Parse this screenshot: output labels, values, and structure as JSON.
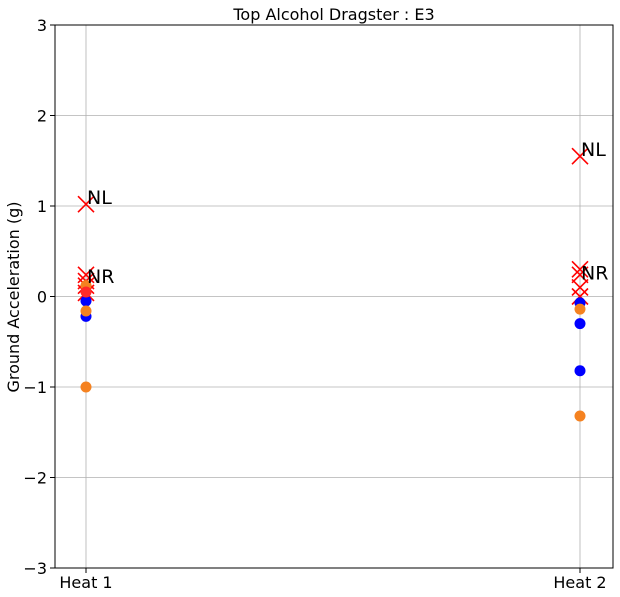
{
  "chart_data": {
    "type": "scatter",
    "title": "Top Alcohol Dragster : E3",
    "xlabel": "",
    "ylabel": "Ground Acceleration (g)",
    "categories": [
      "Heat 1",
      "Heat 2"
    ],
    "ylim": [
      -3,
      3
    ],
    "yticks": [
      -3,
      -2,
      -1,
      0,
      1,
      2,
      3
    ],
    "ytick_labels": [
      "−3",
      "−2",
      "−1",
      "0",
      "1",
      "2",
      "3"
    ],
    "grid": true,
    "series": [
      {
        "marker": "x",
        "color": "#ff0000",
        "points": [
          {
            "x": "Heat 1",
            "y": 1.02
          },
          {
            "x": "Heat 1",
            "y": 0.24
          },
          {
            "x": "Heat 1",
            "y": 0.17
          },
          {
            "x": "Heat 1",
            "y": 0.12
          },
          {
            "x": "Heat 1",
            "y": 0.04
          },
          {
            "x": "Heat 2",
            "y": 1.55
          },
          {
            "x": "Heat 2",
            "y": 0.3
          },
          {
            "x": "Heat 2",
            "y": 0.24
          },
          {
            "x": "Heat 2",
            "y": 0.1
          },
          {
            "x": "Heat 2",
            "y": 0.0
          }
        ]
      },
      {
        "marker": "circle",
        "color": "#0000ff",
        "points": [
          {
            "x": "Heat 1",
            "y": -0.05
          },
          {
            "x": "Heat 1",
            "y": -0.22
          },
          {
            "x": "Heat 2",
            "y": -0.07
          },
          {
            "x": "Heat 2",
            "y": -0.3
          },
          {
            "x": "Heat 2",
            "y": -0.82
          }
        ]
      },
      {
        "marker": "circle",
        "color": "#f58220",
        "points": [
          {
            "x": "Heat 1",
            "y": 0.12
          },
          {
            "x": "Heat 1",
            "y": -0.16
          },
          {
            "x": "Heat 1",
            "y": -1.0
          },
          {
            "x": "Heat 2",
            "y": -0.14
          },
          {
            "x": "Heat 2",
            "y": -1.32
          }
        ]
      },
      {
        "marker": "circle",
        "color": "#ff2a2a",
        "points": [
          {
            "x": "Heat 1",
            "y": 0.05
          }
        ]
      }
    ],
    "annotations": [
      {
        "text": "NL",
        "x": "Heat 1",
        "y": 1.02
      },
      {
        "text": "NR",
        "x": "Heat 1",
        "y": 0.15
      },
      {
        "text": "NL",
        "x": "Heat 2",
        "y": 1.55
      },
      {
        "text": "NR",
        "x": "Heat 2",
        "y": 0.19
      }
    ]
  }
}
